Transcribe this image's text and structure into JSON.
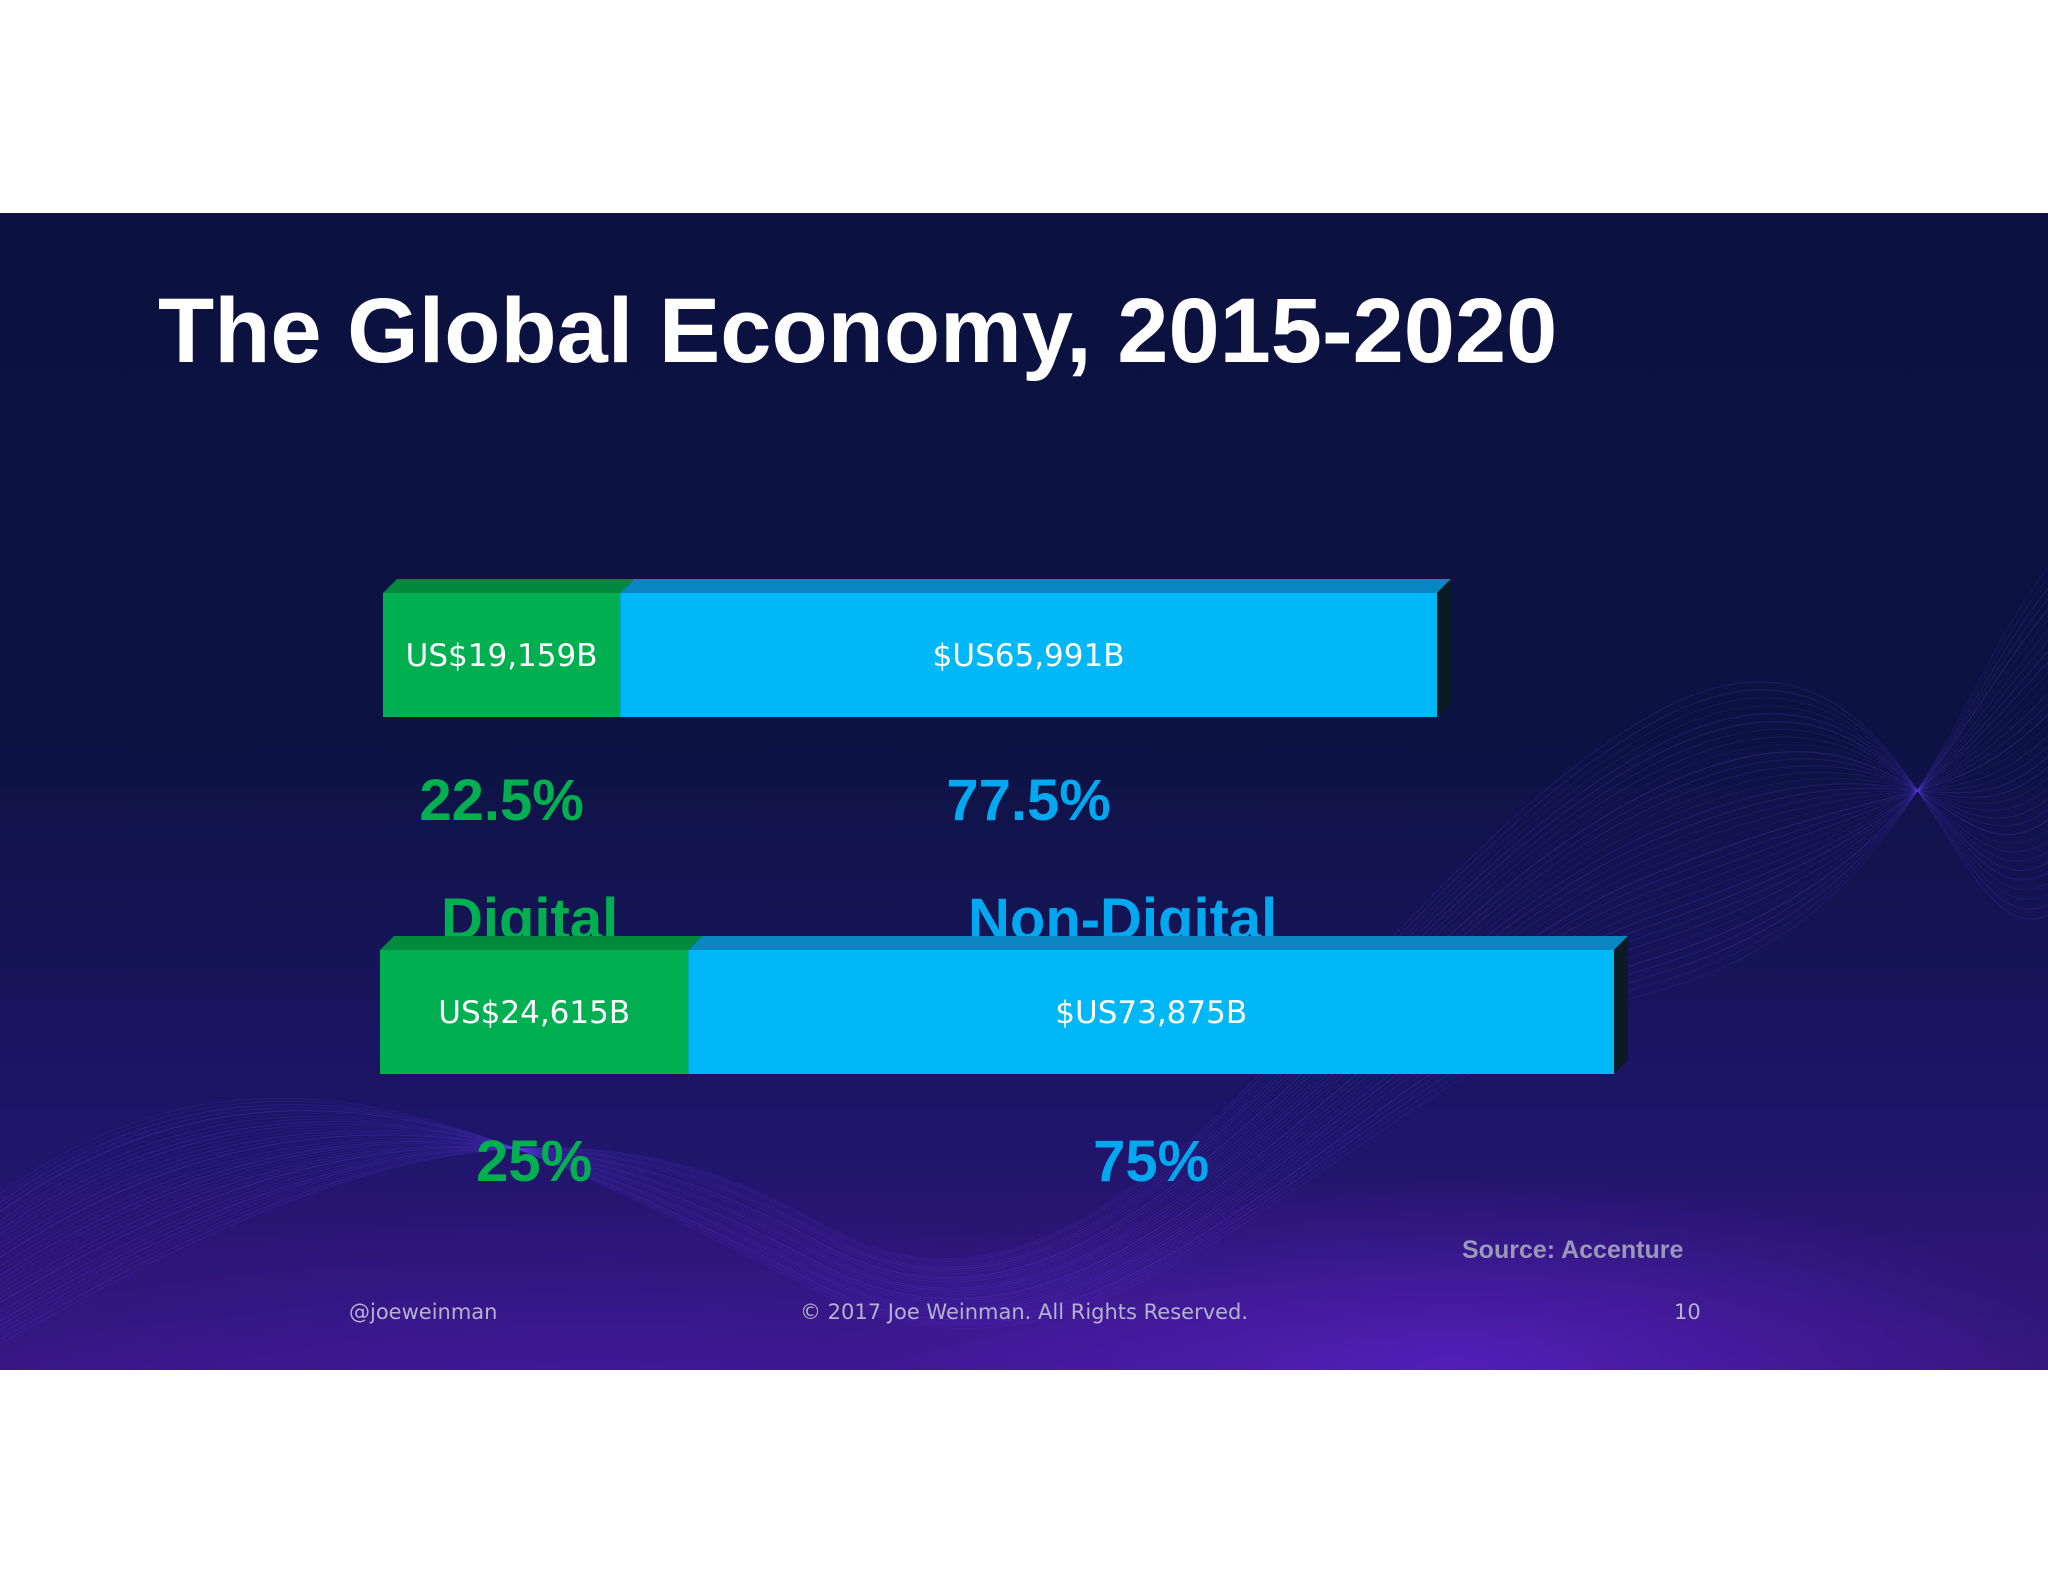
{
  "slide": {
    "title": "The Global Economy, 2015-2020",
    "source": "Source: Accenture",
    "footer": {
      "handle": "@joeweinman",
      "copyright": "© 2017 Joe Weinman.  All Rights Reserved.",
      "page": "10"
    }
  },
  "colors": {
    "digital": "#00b050",
    "digital_top": "#008a3e",
    "digital_text": "#00b050",
    "non_digital": "#00b7f8",
    "non_digital_top": "#0a86c2",
    "non_digital_text": "#00a8f0",
    "bar_side": "#0c1a24"
  },
  "chart_data": {
    "type": "bar",
    "orientation": "horizontal",
    "stacked": true,
    "title": "The Global Economy, 2015-2020",
    "categories": [
      "Digital",
      "Non-Digital"
    ],
    "bars": [
      {
        "segments": [
          {
            "category": "Digital",
            "value": 19159,
            "value_label": "US$19,159B",
            "percent_label": "22.5%"
          },
          {
            "category": "Non-Digital",
            "value": 65991,
            "value_label": "$US65,991B",
            "percent_label": "77.5%"
          }
        ]
      },
      {
        "segments": [
          {
            "category": "Digital",
            "value": 24615,
            "value_label": "US$24,615B",
            "percent_label": "25%"
          },
          {
            "category": "Non-Digital",
            "value": 73875,
            "value_label": "$US73,875B",
            "percent_label": "75%"
          }
        ]
      }
    ]
  }
}
